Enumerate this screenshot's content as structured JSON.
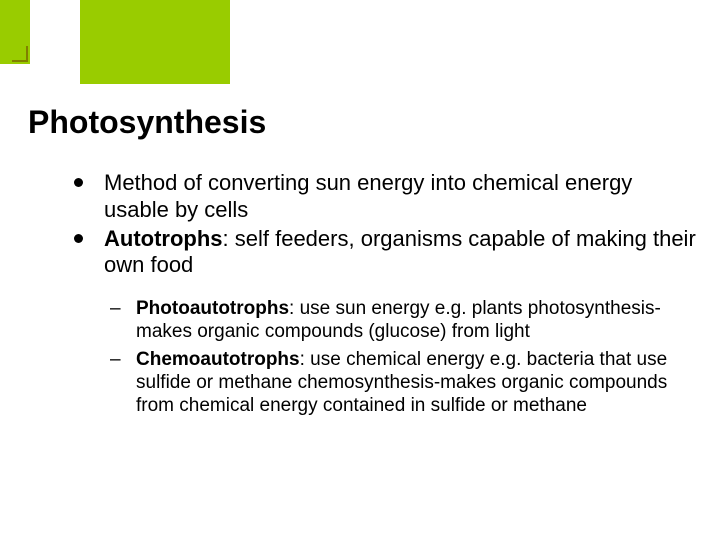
{
  "colors": {
    "accent": "#99cc00",
    "corner_border": "#808000",
    "background": "#ffffff",
    "text": "#000000"
  },
  "typography": {
    "title_fontsize": 32,
    "main_fontsize": 22,
    "sub_fontsize": 19,
    "font_family": "Arial"
  },
  "title": "Photosynthesis",
  "bullets": [
    {
      "text": "Method of converting sun energy into chemical energy usable by cells"
    },
    {
      "bold": "Autotrophs",
      "text": ":  self feeders, organisms capable of making their own food"
    }
  ],
  "sub_bullets": [
    {
      "bold": "Photoautotrophs",
      "text": ":  use sun energy e.g. plants photosynthesis-makes organic compounds (glucose) from light"
    },
    {
      "bold": "Chemoautotrophs",
      "text": ":  use chemical energy e.g. bacteria that use sulfide or methane   chemosynthesis-makes organic compounds from chemical energy contained in sulfide or methane"
    }
  ]
}
